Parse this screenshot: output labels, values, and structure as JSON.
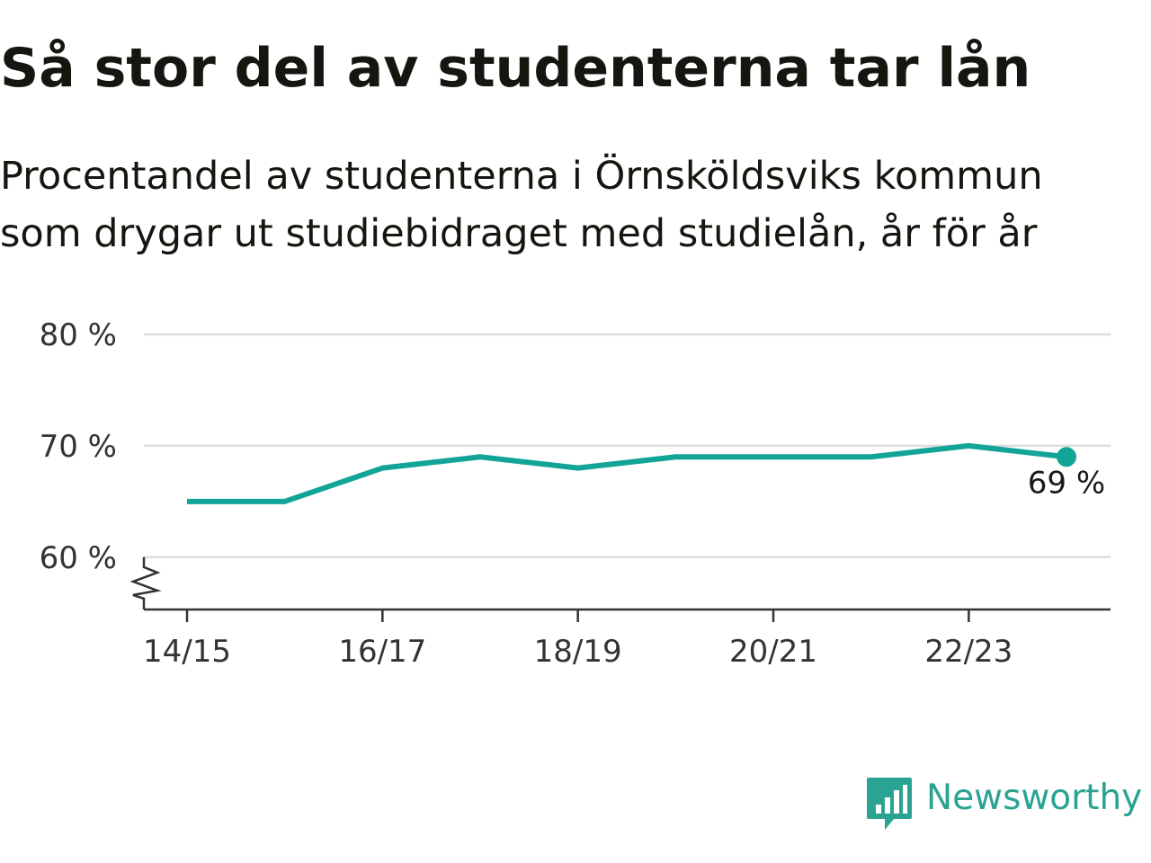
{
  "title": "Så stor del av studenterna tar lån",
  "subtitle": {
    "line1": "Procentandel av studenterna i Örnsköldsviks kommun",
    "line2": "som drygar ut studiebidraget med studielån, år för år"
  },
  "brand": {
    "name": "Newsworthy",
    "logo_icon": "bar-chart-speech-bubble-icon",
    "color": "#2aa392"
  },
  "colors": {
    "line": "#12a597",
    "grid": "#dddddd",
    "axis": "#333333",
    "text": "#333333"
  },
  "chart_data": {
    "type": "line",
    "title": "",
    "xlabel": "",
    "ylabel": "",
    "x": [
      "14/15",
      "15/16",
      "16/17",
      "17/18",
      "18/19",
      "19/20",
      "20/21",
      "21/22",
      "22/23",
      "23/24"
    ],
    "x_tick_labels": [
      "14/15",
      "16/17",
      "18/19",
      "20/21",
      "22/23"
    ],
    "y_tick_values": [
      60,
      70,
      80
    ],
    "y_tick_labels": [
      "60 %",
      "70 %",
      "80 %"
    ],
    "ylim": [
      55.3,
      80
    ],
    "axis_break": "below 60 %",
    "grid": "horizontal",
    "series": [
      {
        "name": "",
        "values": [
          65,
          65,
          68,
          69,
          68,
          69,
          69,
          69,
          70,
          69
        ]
      }
    ],
    "last_point_label": "69 %"
  }
}
